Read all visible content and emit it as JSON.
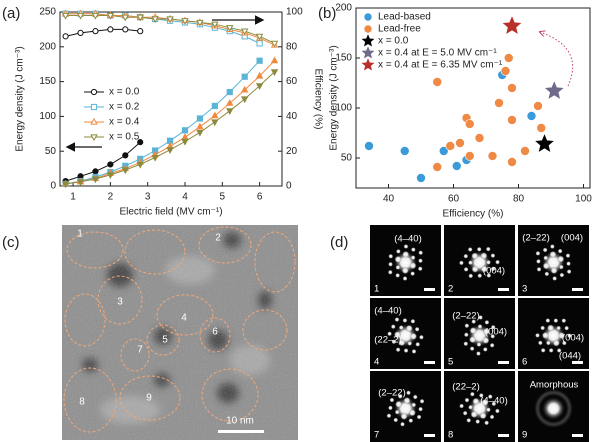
{
  "panel_labels": [
    "(a)",
    "(b)",
    "(c)",
    "(d)"
  ],
  "chart_data": [
    {
      "type": "line",
      "x_label": "Electric field (MV cm⁻¹)",
      "y_label": "Energy density (J cm⁻³)",
      "y2_label": "Efficiency (%)",
      "x": [
        0.8,
        1.2,
        1.6,
        2.0,
        2.4,
        2.8,
        3.2,
        3.6,
        4.0,
        4.4,
        4.8,
        5.2,
        5.6,
        6.0,
        6.4
      ],
      "xlim": [
        0.65,
        6.6
      ],
      "xticks": [
        1,
        2,
        3,
        4,
        5,
        6
      ],
      "ylim": [
        0,
        250
      ],
      "yticks": [
        0,
        50,
        100,
        150,
        200,
        250
      ],
      "y2lim": [
        0,
        100
      ],
      "y2ticks": [
        0,
        20,
        40,
        60,
        80,
        100
      ],
      "legend": "center left",
      "series": [
        {
          "name": "x = 0.0",
          "color": "#111111",
          "marker": "circle",
          "values": [
            7,
            14,
            21,
            31,
            44,
            63,
            null,
            null,
            null,
            null,
            null,
            null,
            null,
            null,
            null
          ]
        },
        {
          "name": "x = 0.2",
          "color": "#5ab4d6",
          "marker": "square",
          "values": [
            3,
            7,
            13,
            20,
            29,
            39,
            51,
            65,
            80,
            97,
            115,
            135,
            157,
            180,
            null
          ]
        },
        {
          "name": "x = 0.4",
          "color": "#ef8a3e",
          "marker": "triangle-up",
          "values": [
            3,
            6,
            11,
            18,
            25,
            34,
            45,
            57,
            70,
            85,
            101,
            119,
            138,
            158,
            180
          ]
        },
        {
          "name": "x = 0.5",
          "color": "#8c8a3c",
          "marker": "triangle-down",
          "values": [
            3,
            6,
            10,
            16,
            23,
            31,
            41,
            52,
            64,
            77,
            92,
            108,
            125,
            144,
            164
          ]
        },
        {
          "color": "#111111",
          "marker": "circle",
          "hollow": true,
          "axis": "y2",
          "values": [
            86,
            88,
            89,
            90,
            90,
            89,
            null,
            null,
            null,
            null,
            null,
            null,
            null,
            null,
            null
          ]
        },
        {
          "color": "#5ab4d6",
          "marker": "square",
          "hollow": true,
          "axis": "y2",
          "values": [
            99,
            99,
            99,
            98,
            98,
            97,
            96,
            95,
            94,
            93,
            91,
            89,
            86,
            82,
            null
          ]
        },
        {
          "color": "#ef8a3e",
          "marker": "triangle-up",
          "hollow": true,
          "axis": "y2",
          "values": [
            99,
            99,
            99,
            98,
            98,
            97,
            97,
            96,
            95,
            94,
            92,
            90,
            88,
            85,
            81
          ]
        },
        {
          "color": "#8c8a3c",
          "marker": "triangle-down",
          "hollow": true,
          "axis": "y2",
          "values": [
            98,
            98,
            98,
            98,
            97,
            97,
            96,
            96,
            95,
            94,
            93,
            91,
            89,
            86,
            82
          ]
        }
      ]
    },
    {
      "type": "scatter",
      "x_label": "Efficiency (%)",
      "y_label": "Energy density (J cm⁻³)",
      "xlim": [
        30,
        102
      ],
      "xticks": [
        40,
        60,
        80,
        100
      ],
      "ylim": [
        20,
        200
      ],
      "yticks": [
        50,
        100,
        150,
        200
      ],
      "legend": "upper left",
      "series": [
        {
          "name": "Lead-based",
          "color": "#3b9bd8",
          "marker": "circle",
          "x": [
            34,
            45,
            50,
            57,
            61,
            64,
            75,
            84
          ],
          "values": [
            62,
            57,
            30,
            57,
            42,
            48,
            133,
            92
          ]
        },
        {
          "name": "Lead-free",
          "color": "#ee8a45",
          "marker": "circle",
          "x": [
            55,
            55,
            59,
            62,
            64,
            65,
            65,
            68,
            72,
            74,
            76,
            77,
            78,
            78,
            78,
            82,
            86,
            87
          ],
          "values": [
            126,
            41,
            62,
            65,
            90,
            84,
            52,
            70,
            52,
            105,
            137,
            150,
            120,
            88,
            46,
            57,
            102,
            80
          ]
        },
        {
          "name": "x = 0.0",
          "color": "#000000",
          "marker": "star",
          "x": [
            88
          ],
          "values": [
            64
          ]
        },
        {
          "name": "x = 0.4 at E = 5.0 MV cm⁻¹",
          "color": "#6f6a8a",
          "marker": "star",
          "x": [
            91
          ],
          "values": [
            117
          ]
        },
        {
          "name": "x = 0.4 at E = 6.35 MV cm⁻¹",
          "color": "#b8302a",
          "marker": "star",
          "x": [
            78
          ],
          "values": [
            182
          ]
        }
      ]
    }
  ],
  "tem_image": {
    "region_labels": [
      "1",
      "2",
      "3",
      "4",
      "5",
      "6",
      "7",
      "8",
      "9"
    ],
    "scale_bar": "10 nm"
  },
  "diffraction": {
    "tiles": [
      {
        "number": "1",
        "labels": [
          "(4–40)"
        ]
      },
      {
        "number": "2",
        "labels": [
          "(004)"
        ]
      },
      {
        "number": "3",
        "labels": [
          "(2–22)",
          "(004)"
        ]
      },
      {
        "number": "4",
        "labels": [
          "(4–40)",
          "(22–2)"
        ]
      },
      {
        "number": "5",
        "labels": [
          "(2–22)",
          "(004)"
        ]
      },
      {
        "number": "6",
        "labels": [
          "(004)",
          "(044)"
        ]
      },
      {
        "number": "7",
        "labels": [
          "(2–22)"
        ]
      },
      {
        "number": "8",
        "labels": [
          "(22–2)",
          "(4–40)"
        ]
      },
      {
        "number": "9",
        "labels": [
          "Amorphous"
        ]
      }
    ]
  }
}
